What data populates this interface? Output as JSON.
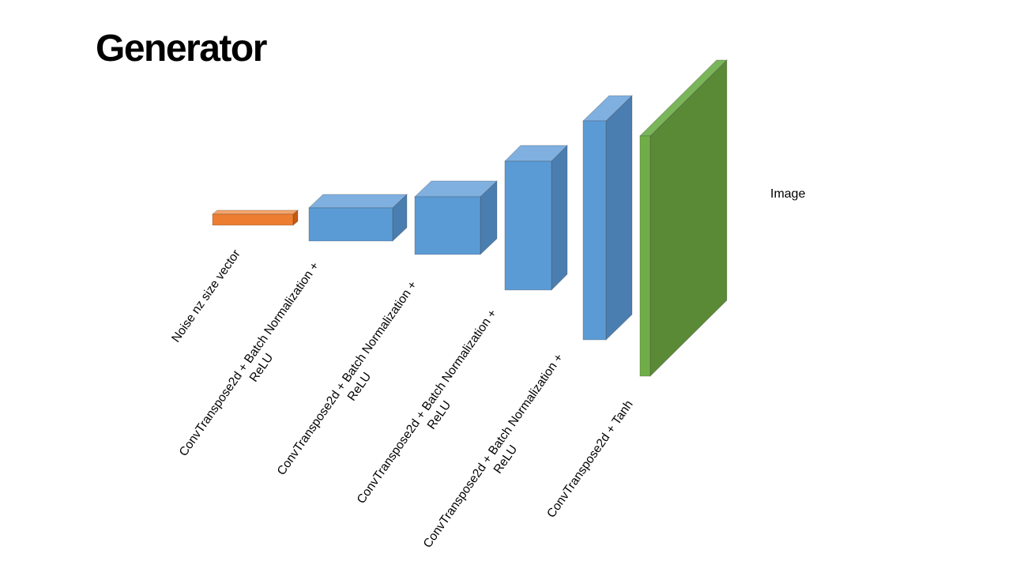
{
  "title": "Generator",
  "output_label": "Image",
  "colors": {
    "noise_front": "#ed7d31",
    "noise_top": "#f4a46a",
    "noise_side": "#c55a11",
    "block_front": "#5b9bd5",
    "block_top": "#7fb0e0",
    "block_side": "#4a7eb0",
    "image_front": "#5a8a36",
    "image_top": "#7ab55a",
    "image_side": "#70ad47"
  },
  "layers": [
    {
      "name": "noise",
      "label_lines": [
        "Noise nz size vector"
      ]
    },
    {
      "name": "layer-1",
      "label_lines": [
        "ConvTranspose2d + Batch Normalization +",
        "ReLU"
      ]
    },
    {
      "name": "layer-2",
      "label_lines": [
        "ConvTranspose2d + Batch Normalization +",
        "ReLU"
      ]
    },
    {
      "name": "layer-3",
      "label_lines": [
        "ConvTranspose2d + Batch Normalization +",
        "ReLU"
      ]
    },
    {
      "name": "layer-4",
      "label_lines": [
        "ConvTranspose2d + Batch Normalization +",
        "ReLU"
      ]
    },
    {
      "name": "output",
      "label_lines": [
        "ConvTranspose2d + Tanh"
      ]
    }
  ]
}
